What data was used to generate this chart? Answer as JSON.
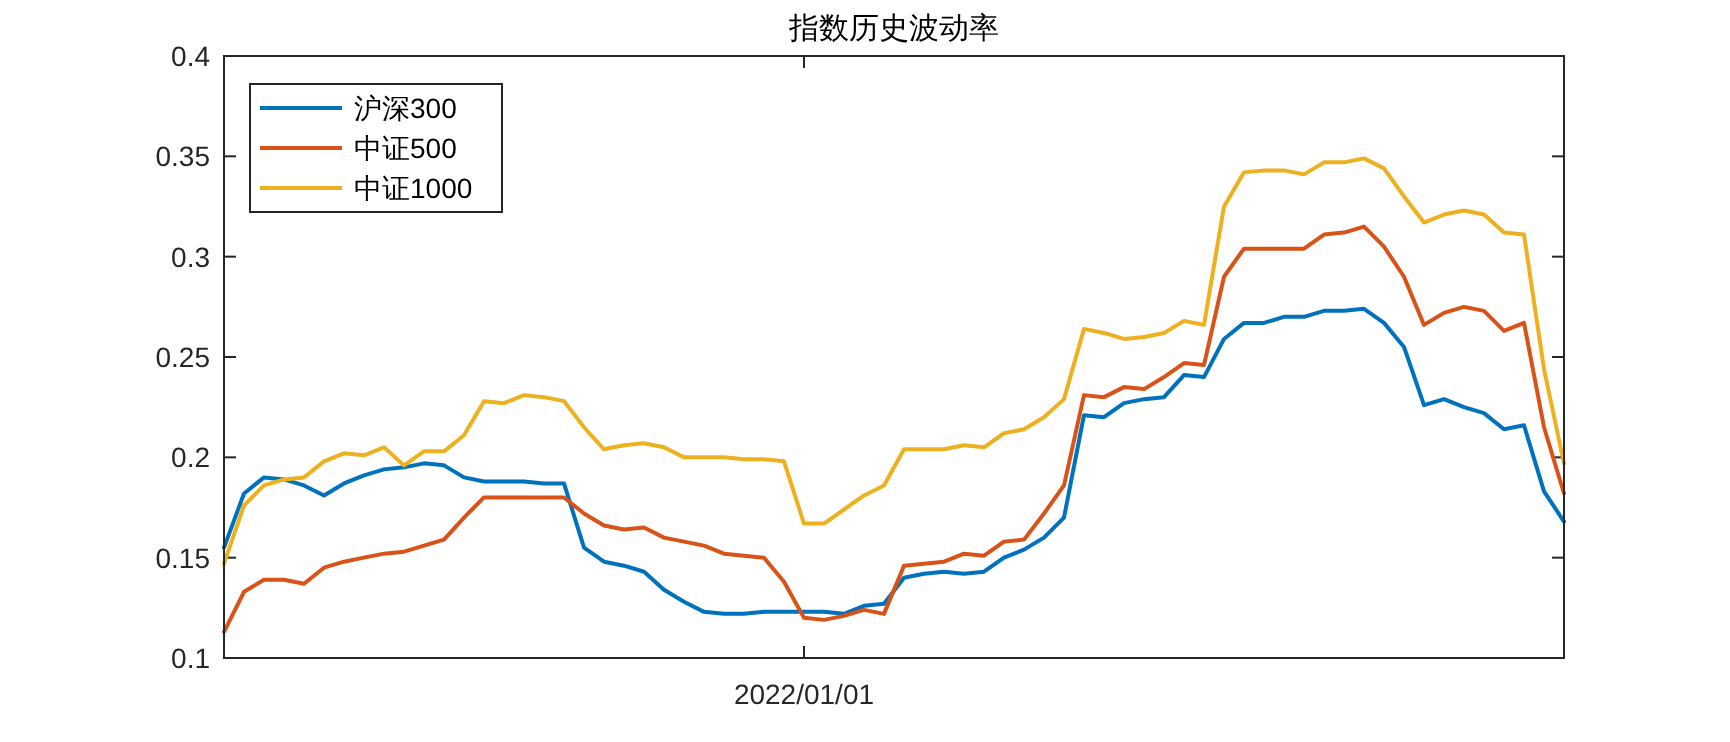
{
  "chart_data": {
    "type": "line",
    "title": "指数历史波动率",
    "categories": [
      null,
      null,
      null,
      null,
      null,
      null,
      null,
      null,
      null,
      null,
      null,
      null,
      null,
      null,
      null,
      null,
      null,
      null,
      null,
      null,
      null,
      null,
      null,
      null,
      null,
      null,
      null,
      null,
      null,
      "2022/01/01",
      null,
      null,
      null,
      null,
      null,
      null,
      null,
      null,
      null,
      null,
      null,
      null,
      null,
      null,
      null,
      null,
      null,
      null,
      null,
      null,
      null,
      null,
      null,
      null,
      null,
      null,
      null,
      null,
      null,
      null,
      null,
      null,
      null,
      null,
      null,
      null,
      null,
      null
    ],
    "ylim": [
      0.1,
      0.4
    ],
    "yticks": [
      0.1,
      0.15,
      0.2,
      0.25,
      0.3,
      0.35,
      0.4
    ],
    "grid": false,
    "legend": "top left",
    "line_style": "solid",
    "marker": "none",
    "series": [
      {
        "name": "沪深300",
        "color": "#0072bd",
        "values": [
          0.155,
          0.182,
          0.19,
          0.189,
          0.186,
          0.181,
          0.187,
          0.191,
          0.194,
          0.195,
          0.197,
          0.196,
          0.19,
          0.188,
          0.188,
          0.188,
          0.187,
          0.187,
          0.155,
          0.148,
          0.146,
          0.143,
          0.134,
          0.128,
          0.123,
          0.122,
          0.122,
          0.123,
          0.123,
          0.123,
          0.123,
          0.122,
          0.126,
          0.127,
          0.14,
          0.142,
          0.143,
          0.142,
          0.143,
          0.15,
          0.154,
          0.16,
          0.17,
          0.221,
          0.22,
          0.227,
          0.229,
          0.23,
          0.241,
          0.24,
          0.259,
          0.267,
          0.267,
          0.27,
          0.27,
          0.273,
          0.273,
          0.274,
          0.267,
          0.255,
          0.226,
          0.229,
          0.225,
          0.222,
          0.214,
          0.216,
          0.183,
          0.168
        ]
      },
      {
        "name": "中证500",
        "color": "#d95319",
        "values": [
          0.113,
          0.133,
          0.139,
          0.139,
          0.137,
          0.145,
          0.148,
          0.15,
          0.152,
          0.153,
          0.156,
          0.159,
          0.17,
          0.18,
          0.18,
          0.18,
          0.18,
          0.18,
          0.172,
          0.166,
          0.164,
          0.165,
          0.16,
          0.158,
          0.156,
          0.152,
          0.151,
          0.15,
          0.138,
          0.12,
          0.119,
          0.121,
          0.124,
          0.122,
          0.146,
          0.147,
          0.148,
          0.152,
          0.151,
          0.158,
          0.159,
          0.172,
          0.186,
          0.231,
          0.23,
          0.235,
          0.234,
          0.24,
          0.247,
          0.246,
          0.29,
          0.304,
          0.304,
          0.304,
          0.304,
          0.311,
          0.312,
          0.315,
          0.305,
          0.29,
          0.266,
          0.272,
          0.275,
          0.273,
          0.263,
          0.267,
          0.215,
          0.182
        ]
      },
      {
        "name": "中证1000",
        "color": "#edb120",
        "values": [
          0.147,
          0.176,
          0.186,
          0.189,
          0.19,
          0.198,
          0.202,
          0.201,
          0.205,
          0.196,
          0.203,
          0.203,
          0.211,
          0.228,
          0.227,
          0.231,
          0.23,
          0.228,
          0.215,
          0.204,
          0.206,
          0.207,
          0.205,
          0.2,
          0.2,
          0.2,
          0.199,
          0.199,
          0.198,
          0.167,
          0.167,
          0.174,
          0.181,
          0.186,
          0.204,
          0.204,
          0.204,
          0.206,
          0.205,
          0.212,
          0.214,
          0.22,
          0.229,
          0.264,
          0.262,
          0.259,
          0.26,
          0.262,
          0.268,
          0.266,
          0.325,
          0.342,
          0.343,
          0.343,
          0.341,
          0.347,
          0.347,
          0.349,
          0.344,
          0.33,
          0.317,
          0.321,
          0.323,
          0.321,
          0.312,
          0.311,
          0.244,
          0.197
        ]
      }
    ]
  }
}
